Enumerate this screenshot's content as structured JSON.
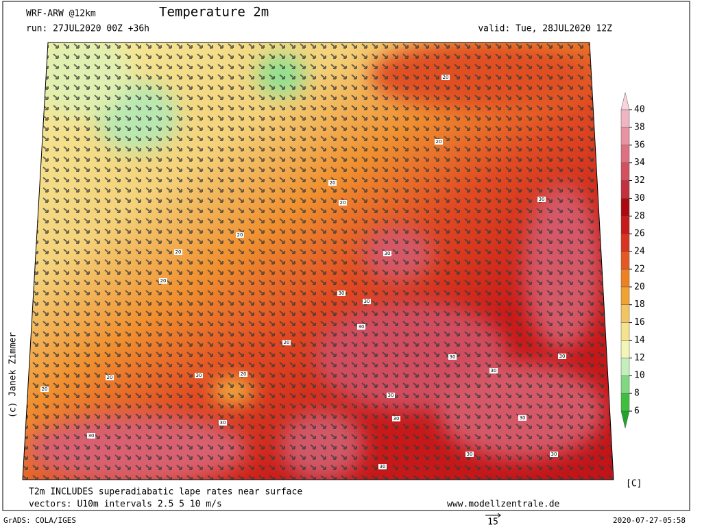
{
  "header": {
    "model": "WRF-ARW @12km",
    "title": "Temperature 2m",
    "run": "run: 27JUL2020 00Z +36h",
    "valid": "valid: Tue, 28JUL2020 12Z"
  },
  "colorbar": {
    "levels": [
      6,
      8,
      10,
      12,
      14,
      16,
      18,
      20,
      22,
      24,
      26,
      28,
      30,
      32,
      34,
      36,
      38,
      40
    ],
    "band_colors": [
      "#3fbf3f",
      "#80d880",
      "#c4efbd",
      "#f4f4b4",
      "#f4e28e",
      "#f4c462",
      "#f0a232",
      "#ee8020",
      "#e65822",
      "#da3420",
      "#c81a18",
      "#ac0a10",
      "#c4303e",
      "#d4505e",
      "#de7080",
      "#e892a2",
      "#f0b4c2"
    ],
    "under_color": "#1ea52a",
    "over_color": "#f8d4dc",
    "unit": "[C]"
  },
  "map": {
    "contour_labels": [
      20,
      20,
      20,
      20,
      20,
      20,
      20,
      30,
      30,
      30,
      30,
      30,
      20,
      20,
      30,
      20,
      20,
      30,
      30,
      30,
      30,
      30,
      30,
      30,
      30,
      30,
      30,
      30
    ]
  },
  "footer": {
    "note1": "T2m INCLUDES superadiabatic lape rates near surface",
    "note2": "vectors: U10m intervals 2.5 5 10 m/s",
    "site": "www.modellzentrale.de",
    "grads": "GrADS: COLA/IGES",
    "scale": "15",
    "timestamp": "2020-07-27-05:58",
    "credit": "(c) Janek Zimmer"
  }
}
